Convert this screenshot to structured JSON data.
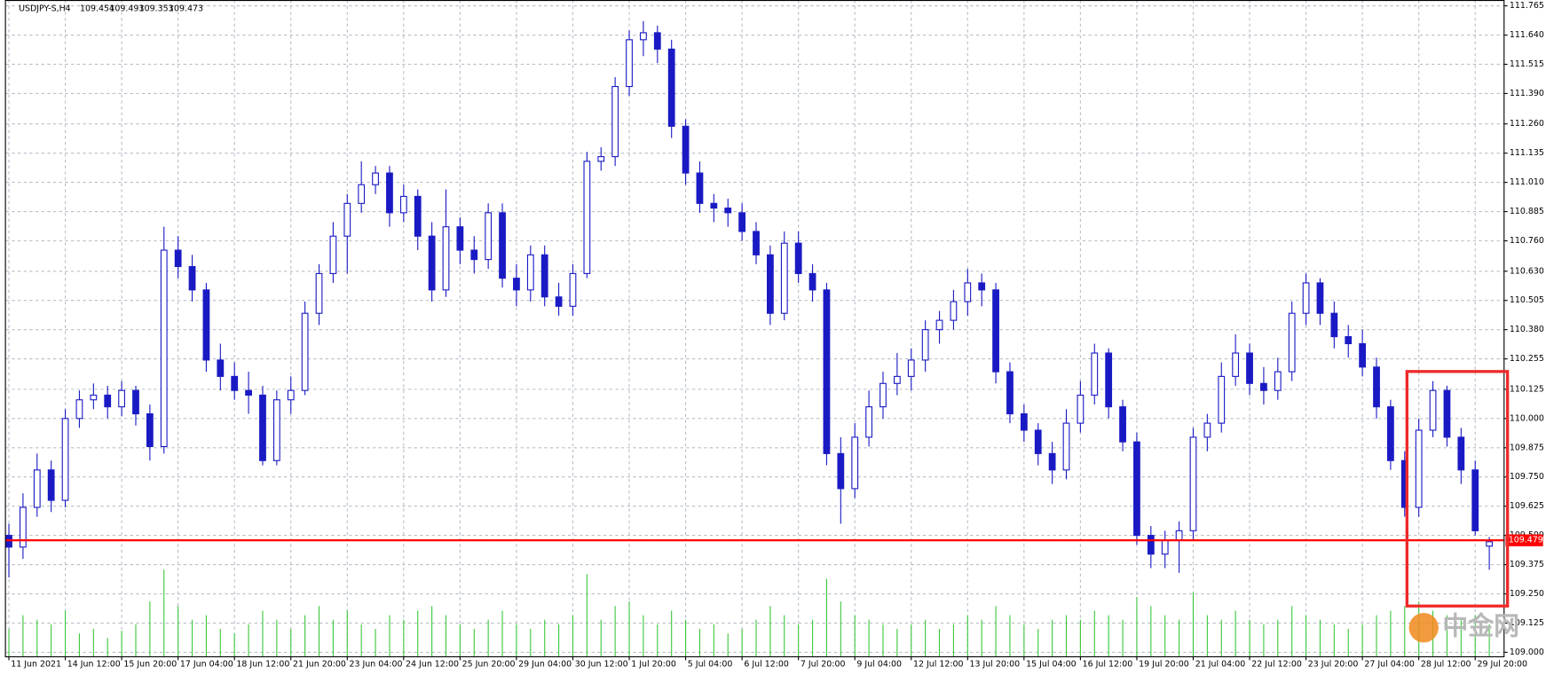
{
  "symbol": "USDJPY-S,H4",
  "watermark": "中金网",
  "chart_data": {
    "type": "candlestick",
    "line_color": "#1a1ac4",
    "up_fill": "#ffffff",
    "volume_color": "#3cc83c",
    "price_line_color": "#ff0000",
    "current_price": 109.479,
    "grid": true,
    "ylim": [
      108.983,
      111.79
    ],
    "yticks": [
      {
        "value": 109,
        "label": "109.000"
      },
      109.125,
      {
        "value": 109.25,
        "label": "109.250"
      },
      109.375,
      {
        "value": 109.5,
        "label": "109.500"
      },
      109.625,
      {
        "value": 109.75,
        "label": "109.750"
      },
      109.875,
      {
        "value": 110,
        "label": "110.000"
      },
      110.125,
      110.255,
      {
        "value": 110.38,
        "label": "110.380"
      },
      110.505,
      {
        "value": 110.63,
        "label": "110.630"
      },
      {
        "value": 110.76,
        "label": "110.760"
      },
      110.885,
      {
        "value": 111.01,
        "label": "111.010"
      },
      111.135,
      {
        "value": 111.26,
        "label": "111.260"
      },
      {
        "value": 111.39,
        "label": "111.390"
      },
      111.515,
      {
        "value": 111.64,
        "label": "111.640"
      },
      111.765
    ],
    "categories": [
      "11 Jun 2021",
      null,
      null,
      null,
      "14 Jun 12:00",
      null,
      null,
      null,
      "15 Jun 20:00",
      null,
      null,
      null,
      "17 Jun 04:00",
      null,
      null,
      null,
      "18 Jun 12:00",
      null,
      null,
      null,
      "21 Jun 20:00",
      null,
      null,
      null,
      "23 Jun 04:00",
      null,
      null,
      null,
      "24 Jun 12:00",
      null,
      null,
      null,
      "25 Jun 20:00",
      null,
      null,
      null,
      "29 Jun 04:00",
      null,
      null,
      null,
      "30 Jun 12:00",
      null,
      null,
      null,
      "1 Jul 20:00",
      null,
      null,
      null,
      "5 Jul 04:00",
      null,
      null,
      null,
      "6 Jul 12:00",
      null,
      null,
      null,
      "7 Jul 20:00",
      null,
      null,
      null,
      "9 Jul 04:00",
      null,
      null,
      null,
      "12 Jul 12:00",
      null,
      null,
      null,
      "13 Jul 20:00",
      null,
      null,
      null,
      "15 Jul 04:00",
      null,
      null,
      null,
      "16 Jul 12:00",
      null,
      null,
      null,
      "19 Jul 20:00",
      null,
      null,
      null,
      "21 Jul 04:00",
      null,
      null,
      null,
      "22 Jul 12:00",
      null,
      null,
      null,
      "23 Jul 20:00",
      null,
      null,
      null,
      "27 Jul 04:00",
      null,
      null,
      null,
      "28 Jul 12:00",
      null,
      null,
      null,
      "29 Jul 20:00",
      null
    ],
    "ohlc": [
      [
        109.5,
        109.55,
        109.32,
        109.45
      ],
      [
        109.45,
        109.68,
        109.4,
        109.62
      ],
      [
        109.62,
        109.85,
        109.58,
        109.78
      ],
      [
        109.78,
        109.82,
        109.6,
        109.65
      ],
      [
        109.65,
        110.04,
        109.62,
        110.0
      ],
      [
        110.0,
        110.12,
        109.96,
        110.08
      ],
      [
        110.08,
        110.15,
        110.04,
        110.1
      ],
      [
        110.1,
        110.14,
        110.0,
        110.05
      ],
      [
        110.05,
        110.16,
        110.01,
        110.12
      ],
      [
        110.12,
        110.14,
        109.97,
        110.02
      ],
      [
        110.02,
        110.06,
        109.82,
        109.88
      ],
      [
        109.88,
        110.82,
        109.85,
        110.72
      ],
      [
        110.72,
        110.78,
        110.6,
        110.65
      ],
      [
        110.65,
        110.7,
        110.5,
        110.55
      ],
      [
        110.55,
        110.58,
        110.2,
        110.25
      ],
      [
        110.25,
        110.32,
        110.12,
        110.18
      ],
      [
        110.18,
        110.24,
        110.08,
        110.12
      ],
      [
        110.12,
        110.2,
        110.02,
        110.1
      ],
      [
        110.1,
        110.14,
        109.8,
        109.82
      ],
      [
        109.82,
        110.12,
        109.8,
        110.08
      ],
      [
        110.08,
        110.18,
        110.02,
        110.12
      ],
      [
        110.12,
        110.5,
        110.1,
        110.45
      ],
      [
        110.45,
        110.66,
        110.4,
        110.62
      ],
      [
        110.62,
        110.84,
        110.58,
        110.78
      ],
      [
        110.78,
        110.96,
        110.62,
        110.92
      ],
      [
        110.92,
        111.1,
        110.88,
        111.0
      ],
      [
        111.0,
        111.08,
        110.96,
        111.05
      ],
      [
        111.05,
        111.08,
        110.82,
        110.88
      ],
      [
        110.88,
        111.0,
        110.84,
        110.95
      ],
      [
        110.95,
        110.98,
        110.72,
        110.78
      ],
      [
        110.78,
        110.84,
        110.5,
        110.55
      ],
      [
        110.55,
        110.98,
        110.52,
        110.82
      ],
      [
        110.82,
        110.86,
        110.66,
        110.72
      ],
      [
        110.72,
        110.78,
        110.62,
        110.68
      ],
      [
        110.68,
        110.92,
        110.64,
        110.88
      ],
      [
        110.88,
        110.92,
        110.56,
        110.6
      ],
      [
        110.6,
        110.66,
        110.48,
        110.55
      ],
      [
        110.55,
        110.74,
        110.5,
        110.7
      ],
      [
        110.7,
        110.74,
        110.48,
        110.52
      ],
      [
        110.52,
        110.58,
        110.44,
        110.48
      ],
      [
        110.48,
        110.66,
        110.44,
        110.62
      ],
      [
        110.62,
        111.14,
        110.6,
        111.1
      ],
      [
        111.1,
        111.16,
        111.06,
        111.12
      ],
      [
        111.12,
        111.46,
        111.08,
        111.42
      ],
      [
        111.42,
        111.66,
        111.38,
        111.62
      ],
      [
        111.62,
        111.7,
        111.55,
        111.65
      ],
      [
        111.65,
        111.68,
        111.52,
        111.58
      ],
      [
        111.58,
        111.62,
        111.2,
        111.25
      ],
      [
        111.25,
        111.28,
        111.0,
        111.05
      ],
      [
        111.05,
        111.1,
        110.88,
        110.92
      ],
      [
        110.92,
        110.96,
        110.84,
        110.9
      ],
      [
        110.9,
        110.94,
        110.82,
        110.88
      ],
      [
        110.88,
        110.92,
        110.76,
        110.8
      ],
      [
        110.8,
        110.84,
        110.66,
        110.7
      ],
      [
        110.7,
        110.74,
        110.4,
        110.45
      ],
      [
        110.45,
        110.8,
        110.42,
        110.75
      ],
      [
        110.75,
        110.8,
        110.58,
        110.62
      ],
      [
        110.62,
        110.66,
        110.5,
        110.55
      ],
      [
        110.55,
        110.58,
        109.8,
        109.85
      ],
      [
        109.85,
        109.92,
        109.55,
        109.7
      ],
      [
        109.7,
        109.98,
        109.66,
        109.92
      ],
      [
        109.92,
        110.12,
        109.88,
        110.05
      ],
      [
        110.05,
        110.2,
        110.0,
        110.15
      ],
      [
        110.15,
        110.28,
        110.1,
        110.18
      ],
      [
        110.18,
        110.3,
        110.12,
        110.25
      ],
      [
        110.25,
        110.42,
        110.2,
        110.38
      ],
      [
        110.38,
        110.46,
        110.32,
        110.42
      ],
      [
        110.42,
        110.55,
        110.38,
        110.5
      ],
      [
        110.5,
        110.64,
        110.44,
        110.58
      ],
      [
        110.58,
        110.62,
        110.48,
        110.55
      ],
      [
        110.55,
        110.58,
        110.15,
        110.2
      ],
      [
        110.2,
        110.24,
        109.98,
        110.02
      ],
      [
        110.02,
        110.06,
        109.9,
        109.95
      ],
      [
        109.95,
        109.98,
        109.8,
        109.85
      ],
      [
        109.85,
        109.9,
        109.72,
        109.78
      ],
      [
        109.78,
        110.04,
        109.74,
        109.98
      ],
      [
        109.98,
        110.16,
        109.94,
        110.1
      ],
      [
        110.1,
        110.32,
        110.06,
        110.28
      ],
      [
        110.28,
        110.3,
        110.0,
        110.05
      ],
      [
        110.05,
        110.08,
        109.86,
        109.9
      ],
      [
        109.9,
        109.94,
        109.46,
        109.5
      ],
      [
        109.5,
        109.54,
        109.36,
        109.42
      ],
      [
        109.42,
        109.52,
        109.36,
        109.48
      ],
      [
        109.48,
        109.56,
        109.34,
        109.52
      ],
      [
        109.52,
        109.96,
        109.48,
        109.92
      ],
      [
        109.92,
        110.02,
        109.86,
        109.98
      ],
      [
        109.98,
        110.24,
        109.94,
        110.18
      ],
      [
        110.18,
        110.36,
        110.14,
        110.28
      ],
      [
        110.28,
        110.32,
        110.1,
        110.15
      ],
      [
        110.15,
        110.22,
        110.06,
        110.12
      ],
      [
        110.12,
        110.26,
        110.08,
        110.2
      ],
      [
        110.2,
        110.5,
        110.16,
        110.45
      ],
      [
        110.45,
        110.62,
        110.4,
        110.58
      ],
      [
        110.58,
        110.6,
        110.4,
        110.45
      ],
      [
        110.45,
        110.5,
        110.3,
        110.35
      ],
      [
        110.35,
        110.4,
        110.26,
        110.32
      ],
      [
        110.32,
        110.38,
        110.18,
        110.22
      ],
      [
        110.22,
        110.26,
        110.0,
        110.05
      ],
      [
        110.05,
        110.08,
        109.78,
        109.82
      ],
      [
        109.82,
        109.86,
        109.58,
        109.62
      ],
      [
        109.62,
        110.0,
        109.58,
        109.95
      ],
      [
        109.95,
        110.16,
        109.92,
        110.12
      ],
      [
        110.12,
        110.14,
        109.88,
        109.92
      ],
      [
        109.92,
        109.96,
        109.72,
        109.78
      ],
      [
        109.78,
        109.82,
        109.5,
        109.52
      ],
      [
        109.454,
        109.493,
        109.353,
        109.473
      ]
    ],
    "volume": [
      30,
      45,
      40,
      35,
      50,
      25,
      30,
      20,
      28,
      35,
      60,
      95,
      55,
      40,
      45,
      30,
      25,
      35,
      50,
      40,
      30,
      45,
      55,
      40,
      50,
      35,
      30,
      45,
      40,
      50,
      55,
      45,
      35,
      30,
      40,
      50,
      35,
      30,
      40,
      35,
      45,
      90,
      40,
      55,
      60,
      45,
      35,
      50,
      40,
      30,
      35,
      25,
      30,
      40,
      55,
      45,
      35,
      40,
      85,
      60,
      45,
      40,
      35,
      30,
      35,
      40,
      30,
      35,
      45,
      40,
      55,
      45,
      35,
      30,
      40,
      45,
      40,
      50,
      45,
      40,
      65,
      55,
      45,
      40,
      70,
      45,
      40,
      50,
      40,
      35,
      40,
      55,
      45,
      40,
      35,
      30,
      35,
      45,
      50,
      55,
      60,
      50,
      45,
      40,
      45,
      35
    ]
  }
}
